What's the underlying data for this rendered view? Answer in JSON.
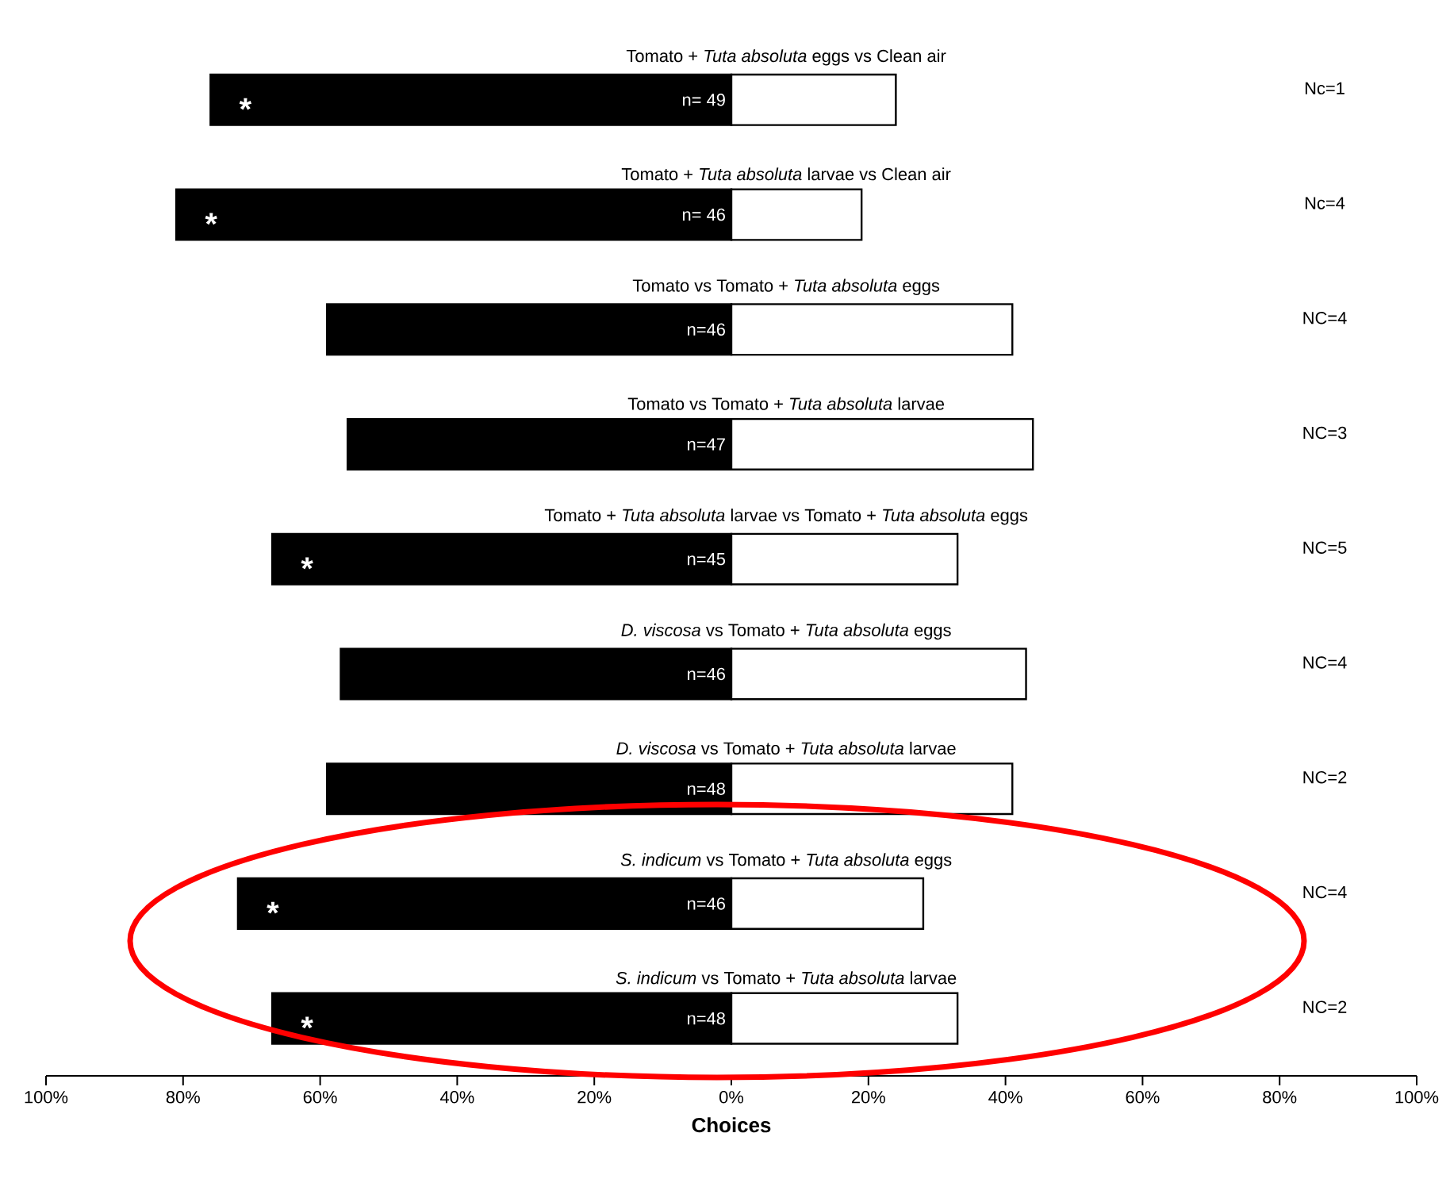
{
  "chart_data": {
    "type": "bar",
    "orientation": "horizontal",
    "xlabel": "Choices",
    "categories": [
      "Tomato + *Tuta absoluta* eggs vs Clean air",
      "Tomato + *Tuta absoluta* larvae  vs Clean air",
      "Tomato vs Tomato + *Tuta absoluta* eggs",
      "Tomato vs Tomato + *Tuta absoluta* larvae",
      "Tomato + *Tuta absoluta* larvae vs Tomato + *Tuta absoluta* eggs",
      "*D. viscosa* vs Tomato + *Tuta absoluta* eggs",
      "*D. viscosa* vs Tomato + *Tuta absoluta*  larvae",
      "*S. indicum* vs Tomato + *Tuta absoluta* eggs",
      "*S. indicum* vs Tomato + *Tuta absoluta* larvae"
    ],
    "series": [
      {
        "color": "#000000",
        "values": [
          -76,
          -81,
          -59,
          -56,
          -67,
          -57,
          -59,
          -72,
          -67
        ]
      },
      {
        "color": "#ffffff",
        "values": [
          24,
          19,
          41,
          44,
          33,
          43,
          41,
          28,
          33
        ]
      }
    ],
    "xlim": [
      -100,
      100
    ],
    "xticks": [
      {
        "value": -100,
        "label": "100%"
      },
      {
        "value": -80,
        "label": "80%"
      },
      {
        "value": -60,
        "label": "60%"
      },
      {
        "value": -40,
        "label": "40%"
      },
      {
        "value": -20,
        "label": "20%"
      },
      {
        "value": 0,
        "label": "0%"
      },
      {
        "value": 20,
        "label": "20%"
      },
      {
        "value": 40,
        "label": "40%"
      },
      {
        "value": 60,
        "label": "60%"
      },
      {
        "value": 80,
        "label": "80%"
      },
      {
        "value": 100,
        "label": "100%"
      }
    ],
    "grid": false,
    "stacked": true,
    "annotations": [
      {
        "text": "n= 49",
        "x": 0,
        "y": "Tomato + *Tuta absoluta* eggs vs Clean air"
      },
      {
        "text": "n= 46",
        "x": 0,
        "y": "Tomato + *Tuta absoluta* larvae  vs Clean air"
      },
      {
        "text": "n=46",
        "x": 0,
        "y": "Tomato vs Tomato + *Tuta absoluta* eggs"
      },
      {
        "text": "n=47",
        "x": 0,
        "y": "Tomato vs Tomato + *Tuta absoluta* larvae"
      },
      {
        "text": "n=45",
        "x": 0,
        "y": "Tomato + *Tuta absoluta* larvae vs Tomato + *Tuta absoluta* eggs"
      },
      {
        "text": "n=46",
        "x": 0,
        "y": "*D. viscosa* vs Tomato + *Tuta absoluta* eggs"
      },
      {
        "text": "n=48",
        "x": 0,
        "y": "*D. viscosa* vs Tomato + *Tuta absoluta*  larvae"
      },
      {
        "text": "n=46",
        "x": 0,
        "y": "*S. indicum* vs Tomato + *Tuta absoluta* eggs"
      },
      {
        "text": "n=48",
        "x": 0,
        "y": "*S. indicum* vs Tomato + *Tuta absoluta* larvae"
      },
      {
        "text": "*",
        "x": -76,
        "y": "Tomato + *Tuta absoluta* eggs vs Clean air"
      },
      {
        "text": "*",
        "x": -81,
        "y": "Tomato + *Tuta absoluta* larvae  vs Clean air"
      },
      {
        "text": "*",
        "x": -67,
        "y": "Tomato + *Tuta absoluta* larvae vs Tomato + *Tuta absoluta* eggs"
      },
      {
        "text": "*",
        "x": -72,
        "y": "*S. indicum* vs Tomato + *Tuta absoluta* eggs"
      },
      {
        "text": "*",
        "x": -67,
        "y": "*S. indicum* vs Tomato + *Tuta absoluta* larvae"
      },
      "Nc=1",
      "Nc=4",
      "NC=4",
      "NC=3",
      "NC=5",
      "NC=4",
      "NC=2",
      "NC=4",
      "NC=2"
    ]
  }
}
